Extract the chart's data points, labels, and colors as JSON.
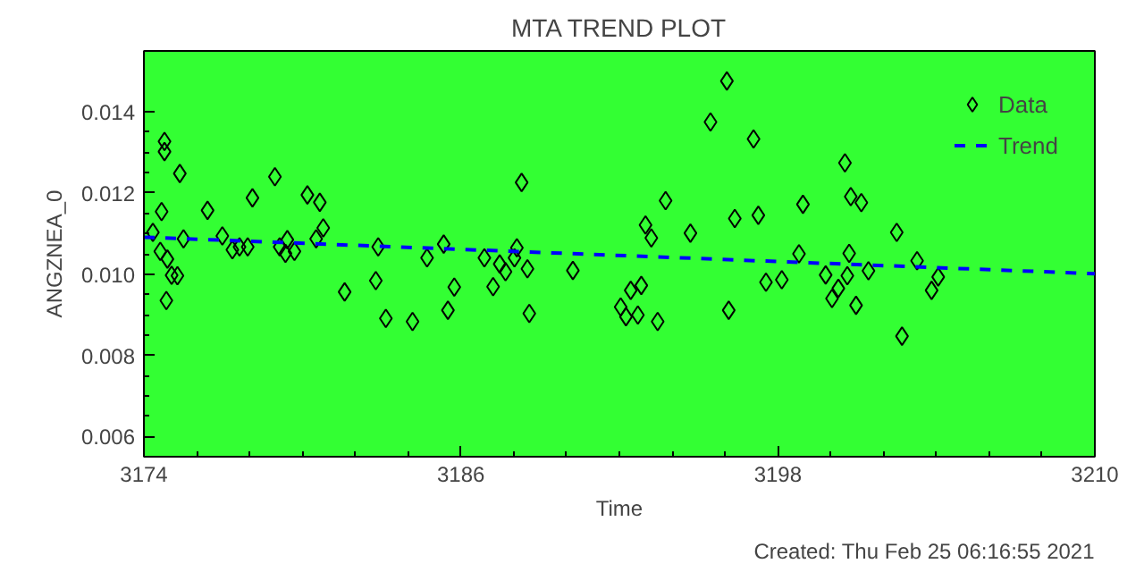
{
  "chart_data": {
    "type": "scatter",
    "title": "MTA TREND PLOT",
    "xlabel": "Time",
    "ylabel": "ANGZNEA_0",
    "annotations": [
      "Created: Thu Feb 25 06:16:55 2021"
    ],
    "xlim": [
      3174,
      3210
    ],
    "xticks": [
      3174,
      3186,
      3198,
      3210
    ],
    "ylim": [
      0.0055,
      0.0155
    ],
    "yticks": [
      0.006,
      0.008,
      {
        "value": 0.01,
        "label": "0.010"
      },
      0.012,
      0.014
    ],
    "grid": false,
    "legend": "top right",
    "series": [
      {
        "name": "Data",
        "marker": "diamond",
        "color": "#000000",
        "x": [
          3174.34,
          3174.78,
          3174.78,
          3174.67,
          3174.62,
          3174.89,
          3174.85,
          3175.05,
          3175.27,
          3175.36,
          3175.5,
          3176.41,
          3176.97,
          3177.35,
          3177.62,
          3177.93,
          3178.11,
          3178.96,
          3179.14,
          3179.36,
          3179.43,
          3179.7,
          3180.19,
          3180.52,
          3180.66,
          3180.79,
          3181.6,
          3182.78,
          3182.87,
          3183.16,
          3184.17,
          3184.72,
          3185.35,
          3185.51,
          3185.75,
          3186.89,
          3187.22,
          3187.47,
          3187.69,
          3188.03,
          3188.12,
          3188.3,
          3188.52,
          3188.59,
          3190.24,
          3192.05,
          3192.25,
          3192.43,
          3192.7,
          3192.83,
          3192.99,
          3193.21,
          3193.45,
          3193.75,
          3194.69,
          3195.45,
          3196.07,
          3196.14,
          3196.37,
          3197.08,
          3197.26,
          3197.55,
          3198.15,
          3198.8,
          3198.95,
          3199.81,
          3200.05,
          3200.29,
          3200.54,
          3200.63,
          3200.7,
          3200.76,
          3200.96,
          3201.16,
          3201.43,
          3202.5,
          3202.7,
          3203.27,
          3203.82,
          3204.07
        ],
        "values": [
          0.01103,
          0.01327,
          0.01302,
          0.01154,
          0.01056,
          0.01037,
          0.00935,
          0.00997,
          0.00996,
          0.01248,
          0.01087,
          0.01157,
          0.01094,
          0.0106,
          0.01067,
          0.01067,
          0.01188,
          0.0124,
          0.01067,
          0.01051,
          0.01085,
          0.01056,
          0.01195,
          0.01087,
          0.01177,
          0.01114,
          0.00956,
          0.00984,
          0.01067,
          0.00891,
          0.00883,
          0.0104,
          0.01074,
          0.00911,
          0.00968,
          0.0104,
          0.00969,
          0.01025,
          0.01006,
          0.0104,
          0.01065,
          0.01226,
          0.01013,
          0.00903,
          0.01009,
          0.00919,
          0.00895,
          0.0096,
          0.00899,
          0.00972,
          0.01121,
          0.01089,
          0.00883,
          0.01181,
          0.01101,
          0.01375,
          0.01476,
          0.00911,
          0.01137,
          0.01333,
          0.01145,
          0.0098,
          0.00986,
          0.0105,
          0.01172,
          0.00998,
          0.0094,
          0.00965,
          0.01274,
          0.00996,
          0.01051,
          0.01191,
          0.00923,
          0.01176,
          0.01008,
          0.01103,
          0.00847,
          0.01033,
          0.0096,
          0.00993
        ]
      },
      {
        "name": "Trend",
        "type": "line",
        "marker": "none",
        "line_style": "dashed",
        "color": "#0000ff",
        "x": [
          3174,
          3210
        ],
        "values": [
          0.01091,
          0.01001
        ]
      }
    ]
  }
}
